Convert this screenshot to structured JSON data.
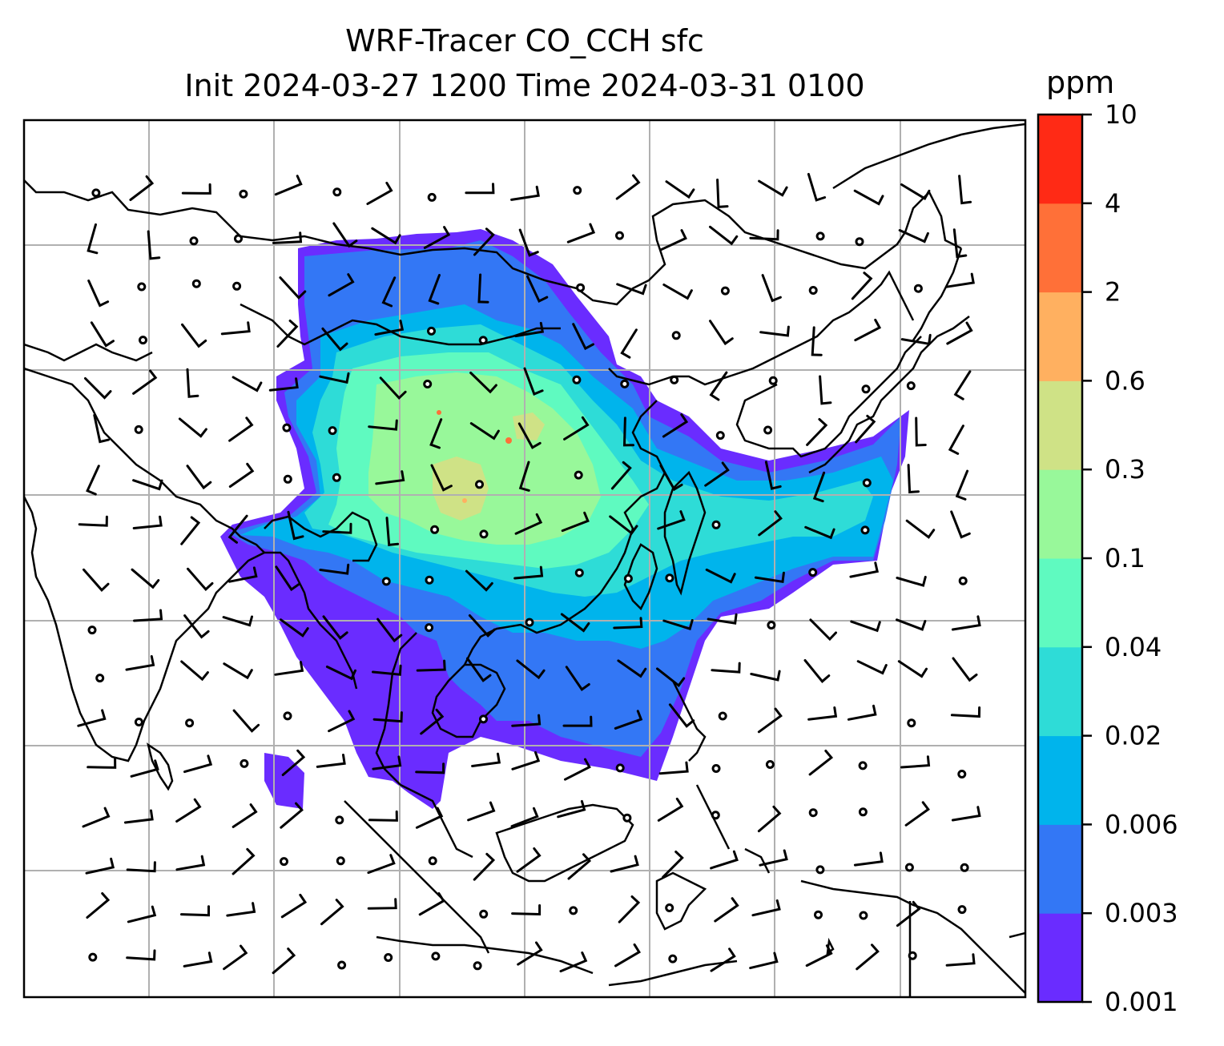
{
  "title": {
    "line1": "WRF-Tracer CO_CCH sfc",
    "line2": "Init 2024-03-27 1200 Time 2024-03-31 0100"
  },
  "colorbar": {
    "unit": "ppm",
    "levels": [
      "0.001",
      "0.003",
      "0.006",
      "0.02",
      "0.04",
      "0.1",
      "0.3",
      "0.6",
      "2",
      "4",
      "10"
    ],
    "colors": [
      "#6a2cff",
      "#3377f5",
      "#00b4ec",
      "#2edcd7",
      "#5ffac0",
      "#98f89a",
      "#cfe286",
      "#ffb060",
      "#ff7038",
      "#ff2a15"
    ]
  },
  "map": {
    "gridline_color": "#b0b0b0",
    "coastline_color": "#000000",
    "barb_color": "#000000"
  }
}
